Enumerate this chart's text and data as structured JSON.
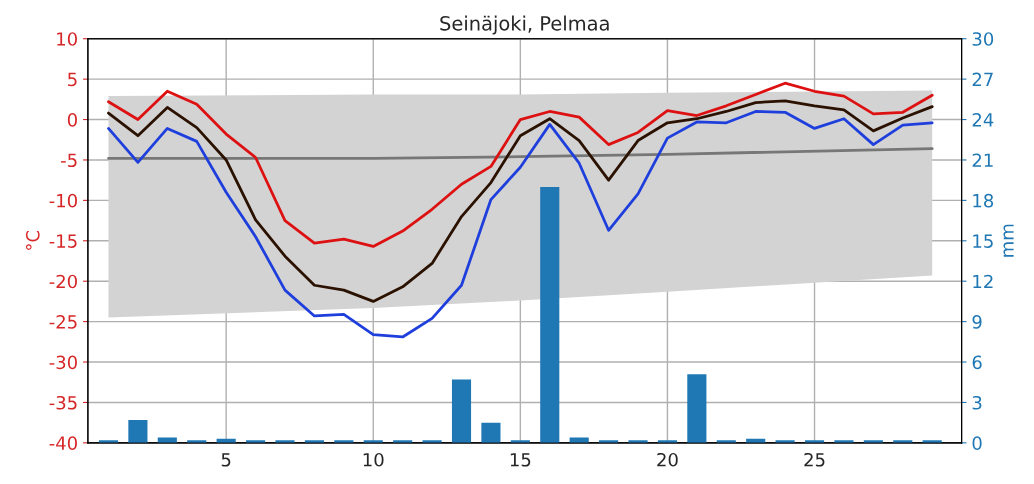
{
  "chart_data": {
    "type": "line",
    "title": "Seinäjoki, Pelmaa",
    "ylabel": "°C",
    "y2label": "mm",
    "x": [
      1,
      2,
      3,
      4,
      5,
      6,
      7,
      8,
      9,
      10,
      11,
      12,
      13,
      14,
      15,
      16,
      17,
      18,
      19,
      20,
      21,
      22,
      23,
      24,
      25,
      26,
      27,
      28,
      29
    ],
    "series": [
      {
        "color": "#777777",
        "x": [
          1,
          10,
          15,
          20,
          29
        ],
        "values": [
          -4.8,
          -4.8,
          -4.6,
          -4.3,
          -3.6
        ],
        "lower": [
          -24.5,
          -23.3,
          -22.4,
          -21.3,
          -19.3
        ],
        "upper": [
          2.9,
          3.1,
          3.1,
          3.3,
          3.6
        ]
      },
      {
        "color": "#dd1111",
        "values": [
          2.2,
          0.0,
          3.5,
          1.9,
          -1.8,
          -4.7,
          -12.5,
          -15.3,
          -14.8,
          -15.7,
          -13.8,
          -11.1,
          -8.0,
          -5.8,
          0.0,
          1.0,
          0.3,
          -3.1,
          -1.6,
          1.1,
          0.5,
          1.7,
          3.1,
          4.5,
          3.5,
          2.9,
          0.7,
          0.9,
          3.0
        ]
      },
      {
        "color": "#2b1200",
        "values": [
          0.8,
          -2.0,
          1.5,
          -1.0,
          -5.0,
          -12.4,
          -16.9,
          -20.5,
          -21.1,
          -22.5,
          -20.7,
          -17.8,
          -12.0,
          -7.8,
          -2.0,
          0.1,
          -2.6,
          -7.5,
          -2.6,
          -0.4,
          0.1,
          1.0,
          2.1,
          2.3,
          1.7,
          1.2,
          -1.4,
          0.2,
          1.6
        ]
      },
      {
        "color": "#1f3fdd",
        "values": [
          -1.1,
          -5.3,
          -1.1,
          -2.7,
          -9.0,
          -14.5,
          -21.1,
          -24.3,
          -24.1,
          -26.6,
          -26.9,
          -24.6,
          -20.5,
          -9.9,
          -5.9,
          -0.6,
          -5.4,
          -13.7,
          -9.2,
          -2.3,
          -0.3,
          -0.4,
          1.0,
          0.9,
          -1.1,
          0.1,
          -3.1,
          -0.7,
          -0.4
        ]
      },
      {
        "type": "bar",
        "axis": "y2",
        "color": "#1f77b4",
        "values": [
          0.2,
          1.7,
          0.4,
          0.2,
          0.3,
          0.2,
          0.2,
          0.2,
          0.2,
          0.2,
          0.2,
          0.2,
          4.7,
          1.5,
          0.2,
          19.0,
          0.4,
          0.2,
          0.2,
          0.2,
          5.1,
          0.2,
          0.3,
          0.2,
          0.2,
          0.2,
          0.2,
          0.2,
          0.2
        ]
      }
    ],
    "xlim": [
      0.3,
      30
    ],
    "xticks": [
      5,
      10,
      15,
      20,
      25
    ],
    "ylim": [
      -40,
      10
    ],
    "yticks": [
      -40,
      -35,
      -30,
      -25,
      -20,
      -15,
      -10,
      -5,
      0,
      5,
      10
    ],
    "y2lim": [
      0,
      30
    ],
    "y2ticks": [
      0,
      3,
      6,
      9,
      12,
      15,
      18,
      21,
      24,
      27,
      30
    ],
    "grid": true,
    "legend": false,
    "marker": "none",
    "line_style": "solid"
  }
}
